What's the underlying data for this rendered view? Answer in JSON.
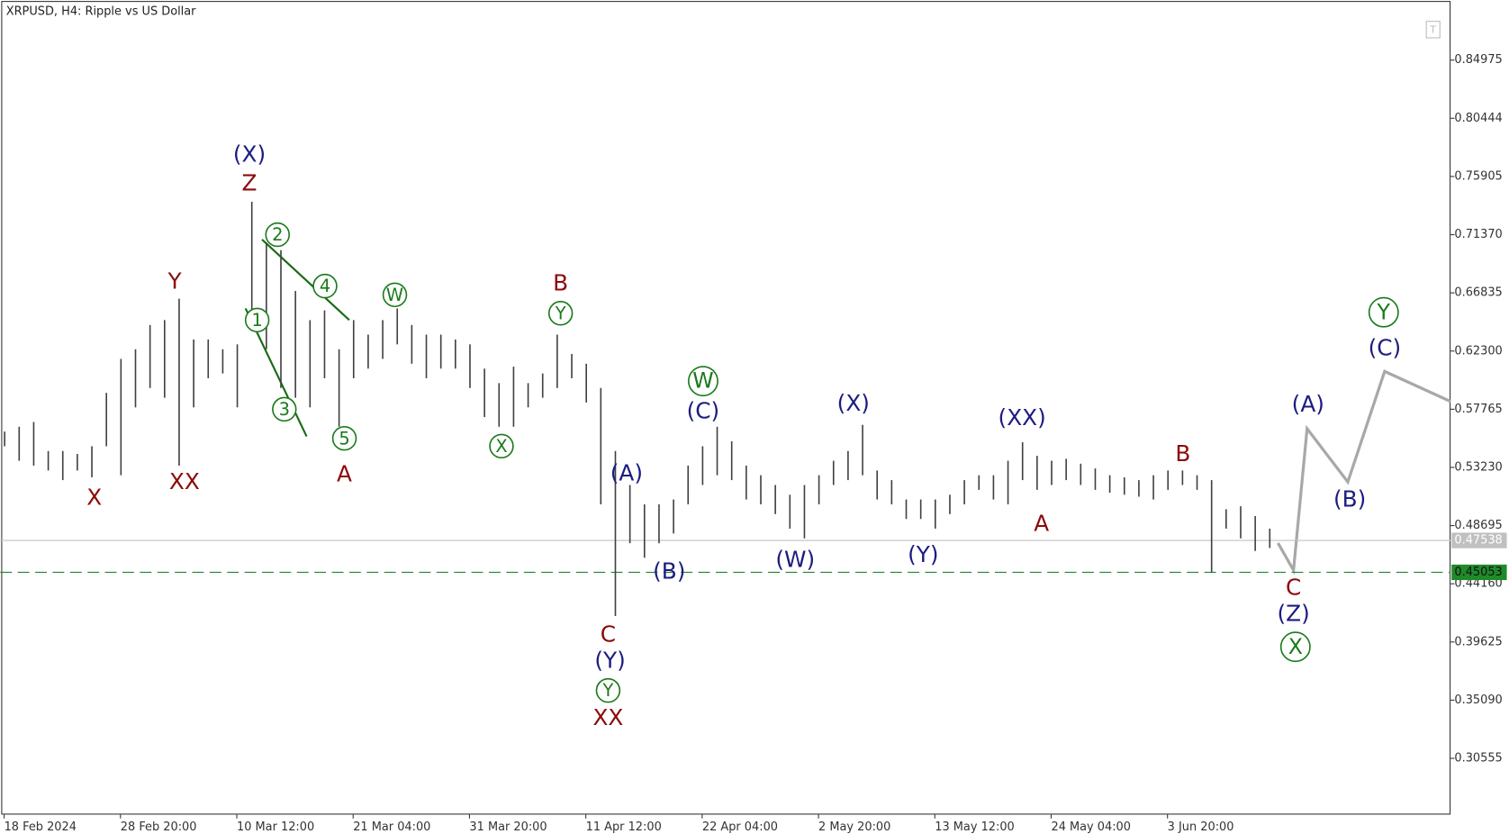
{
  "chart_data": {
    "type": "hilo",
    "title": "XRPUSD, H4:  Ripple vs US Dollar",
    "color": "#404040",
    "categories": [
      "18 Feb 2024",
      null,
      null,
      null,
      null,
      null,
      null,
      null,
      "28 Feb 20:00",
      null,
      null,
      null,
      null,
      null,
      null,
      null,
      "10 Mar 12:00",
      null,
      null,
      null,
      null,
      null,
      null,
      null,
      "21 Mar 04:00",
      null,
      null,
      null,
      null,
      null,
      null,
      null,
      "31 Mar 20:00",
      null,
      null,
      null,
      null,
      null,
      null,
      null,
      "11 Apr 12:00",
      null,
      null,
      null,
      null,
      null,
      null,
      null,
      "22 Apr 04:00",
      null,
      null,
      null,
      null,
      null,
      null,
      null,
      "2 May 20:00",
      null,
      null,
      null,
      null,
      null,
      null,
      null,
      "13 May 12:00",
      null,
      null,
      null,
      null,
      null,
      null,
      null,
      "24 May 04:00",
      null,
      null,
      null,
      null,
      null,
      null,
      null,
      "3 Jun 20:00",
      null,
      null,
      null,
      null,
      null,
      null,
      null
    ],
    "highs": [
      0.5602,
      0.564,
      0.5677,
      0.5451,
      0.5451,
      0.5428,
      0.5488,
      0.5904,
      0.6169,
      0.6244,
      0.6433,
      0.6471,
      0.6638,
      0.632,
      0.632,
      0.6244,
      0.6282,
      0.7394,
      0.7076,
      0.7016,
      0.6698,
      0.6471,
      0.6547,
      0.6244,
      0.6471,
      0.6358,
      0.6471,
      0.6562,
      0.6433,
      0.6358,
      0.6358,
      0.632,
      0.6282,
      0.6093,
      0.598,
      0.6108,
      0.598,
      0.6055,
      0.6358,
      0.6207,
      0.6131,
      0.5942,
      0.5451,
      0.5186,
      0.5035,
      0.5035,
      0.5073,
      0.5337,
      0.5488,
      0.564,
      0.5526,
      0.5337,
      0.5262,
      0.5186,
      0.511,
      0.5186,
      0.5262,
      0.5375,
      0.5451,
      0.5655,
      0.5299,
      0.5224,
      0.5073,
      0.5073,
      0.5073,
      0.511,
      0.5224,
      0.5262,
      0.5262,
      0.5375,
      0.5519,
      0.5413,
      0.5375,
      0.539,
      0.5352,
      0.5315,
      0.5262,
      0.5246,
      0.5224,
      0.5262,
      0.5299,
      0.5299,
      0.5262,
      0.5224,
      0.4997,
      0.502,
      0.4944,
      0.4846
    ],
    "lows": [
      0.5488,
      0.5375,
      0.5337,
      0.5299,
      0.5224,
      0.5299,
      0.5246,
      0.5488,
      0.5262,
      0.5791,
      0.5942,
      0.5866,
      0.5337,
      0.5791,
      0.6018,
      0.6055,
      0.5791,
      0.6471,
      0.6244,
      0.5942,
      0.5866,
      0.5791,
      0.6018,
      0.564,
      0.6018,
      0.6093,
      0.6169,
      0.6282,
      0.6131,
      0.6018,
      0.6093,
      0.6093,
      0.5942,
      0.5715,
      0.564,
      0.564,
      0.5791,
      0.5866,
      0.5942,
      0.6018,
      0.5829,
      0.5035,
      0.4165,
      0.4732,
      0.4619,
      0.4732,
      0.4808,
      0.5035,
      0.5186,
      0.5262,
      0.5224,
      0.5073,
      0.5035,
      0.4959,
      0.4846,
      0.477,
      0.5035,
      0.5186,
      0.5224,
      0.5262,
      0.5073,
      0.5035,
      0.4921,
      0.4921,
      0.4846,
      0.4959,
      0.5035,
      0.5148,
      0.5073,
      0.5035,
      0.5224,
      0.5148,
      0.5186,
      0.5224,
      0.5186,
      0.5148,
      0.5126,
      0.511,
      0.5095,
      0.5073,
      0.5148,
      0.5186,
      0.5148,
      0.4506,
      0.4846,
      0.477,
      0.4672,
      0.4695
    ],
    "ylim": [
      0.2617,
      0.8966
    ],
    "yticks": [
      0.84975,
      0.80444,
      0.75905,
      {
        "value": 0.7137,
        "label": "0.71370"
      },
      0.66835,
      {
        "value": 0.623,
        "label": "0.62300"
      },
      0.57765,
      {
        "value": 0.5323,
        "label": "0.53230"
      },
      0.48695,
      {
        "value": 0.4416,
        "label": "0.44160"
      },
      0.39625,
      {
        "value": 0.3509,
        "label": "0.35090"
      },
      0.30555
    ],
    "price_lines": [
      {
        "value": 0.47538,
        "color": "#c0c0c0",
        "dashed": false
      },
      {
        "value": 0.45053,
        "color": "#1f8a2a",
        "dashed": true
      }
    ],
    "annotations": [
      {
        "text": "(X)",
        "color": "#1c1c80",
        "circled": false
      },
      {
        "text": "Z",
        "color": "#8b0a0a",
        "circled": false
      },
      {
        "text": "Y",
        "color": "#8b0a0a",
        "circled": false
      },
      {
        "text": "XX",
        "color": "#8b0a0a",
        "circled": false
      },
      {
        "text": "X",
        "color": "#8b0a0a",
        "circled": false
      },
      {
        "text": "2",
        "color": "#1a7a1a",
        "circled": true
      },
      {
        "text": "4",
        "color": "#1a7a1a",
        "circled": true
      },
      {
        "text": "1",
        "color": "#1a7a1a",
        "circled": true
      },
      {
        "text": "3",
        "color": "#1a7a1a",
        "circled": true
      },
      {
        "text": "5",
        "color": "#1a7a1a",
        "circled": true
      },
      {
        "text": "A",
        "color": "#8b0a0a",
        "circled": false
      },
      {
        "text": "W",
        "color": "#1a7a1a",
        "circled": true
      },
      {
        "text": "X",
        "color": "#1a7a1a",
        "circled": true
      },
      {
        "text": "B",
        "color": "#8b0a0a",
        "circled": false
      },
      {
        "text": "Y",
        "color": "#1a7a1a",
        "circled": true
      },
      {
        "text": "(A)",
        "color": "#1c1c80",
        "circled": false
      },
      {
        "text": "(B)",
        "color": "#1c1c80",
        "circled": false
      },
      {
        "text": "C",
        "color": "#8b0a0a",
        "circled": false
      },
      {
        "text": "(Y)",
        "color": "#1c1c80",
        "circled": false
      },
      {
        "text": "Y",
        "color": "#1a7a1a",
        "circled": true
      },
      {
        "text": "XX",
        "color": "#8b0a0a",
        "circled": false
      },
      {
        "text": "W",
        "color": "#1a7a1a",
        "circled": true
      },
      {
        "text": "(C)",
        "color": "#1c1c80",
        "circled": false
      },
      {
        "text": "(X)",
        "color": "#1c1c80",
        "circled": false
      },
      {
        "text": "(W)",
        "color": "#1c1c80",
        "circled": false
      },
      {
        "text": "(Y)",
        "color": "#1c1c80",
        "circled": false
      },
      {
        "text": "(XX)",
        "color": "#1c1c80",
        "circled": false
      },
      {
        "text": "A",
        "color": "#8b0a0a",
        "circled": false
      },
      {
        "text": "B",
        "color": "#8b0a0a",
        "circled": false
      },
      {
        "text": "C",
        "color": "#8b0a0a",
        "circled": false
      },
      {
        "text": "(Z)",
        "color": "#1c1c80",
        "circled": false
      },
      {
        "text": "X",
        "color": "#1a7a1a",
        "circled": true
      },
      {
        "text": "(A)",
        "color": "#1c1c80",
        "circled": false
      },
      {
        "text": "(B)",
        "color": "#1c1c80",
        "circled": false
      },
      {
        "text": "(C)",
        "color": "#1c1c80",
        "circled": false
      },
      {
        "text": "Y",
        "color": "#1a7a1a",
        "circled": true
      }
    ]
  }
}
